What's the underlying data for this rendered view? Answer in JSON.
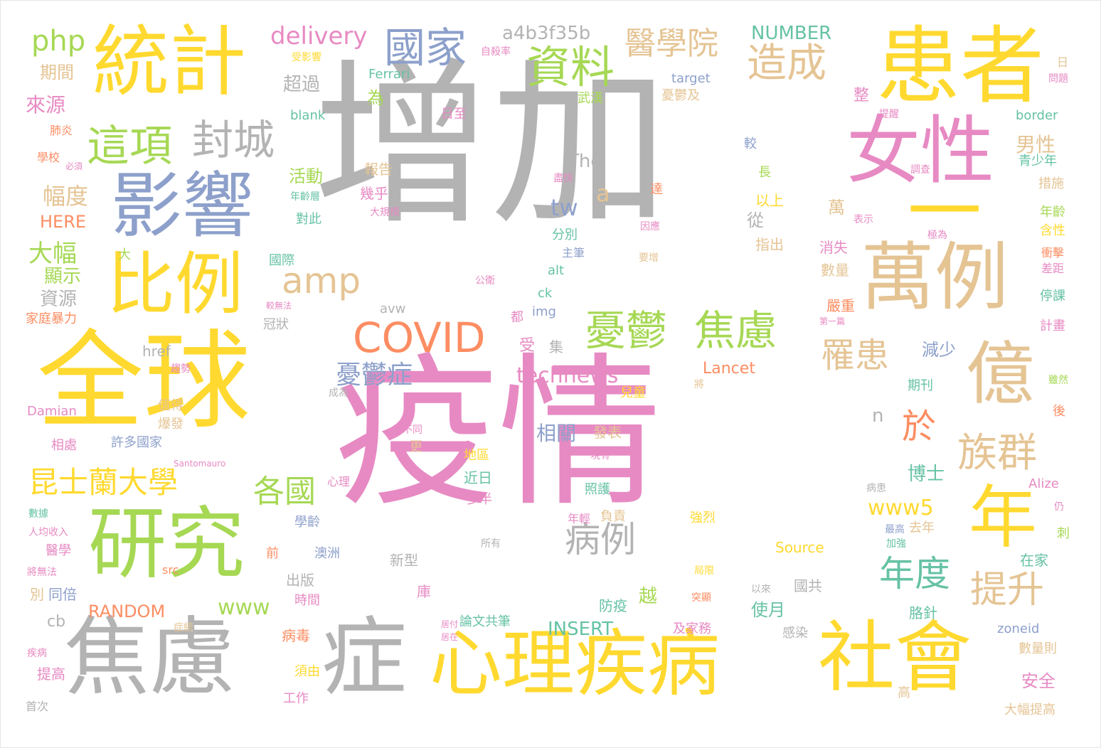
{
  "palette": {
    "gray": "#b3b3b3",
    "pink": "#e78ac3",
    "yellow": "#ffd92f",
    "green": "#a6d854",
    "blue": "#8da0cb",
    "tan": "#e5c494",
    "orange": "#fc8d62",
    "teal": "#66c2a5"
  },
  "words": [
    {
      "text": "增加",
      "color": "gray"
    },
    {
      "text": "疫情",
      "color": "pink"
    },
    {
      "text": "全球",
      "color": "yellow"
    },
    {
      "text": "患者",
      "color": "yellow"
    },
    {
      "text": "統計",
      "color": "yellow"
    },
    {
      "text": "影響",
      "color": "blue"
    },
    {
      "text": "比例",
      "color": "yellow"
    },
    {
      "text": "研究",
      "color": "green"
    },
    {
      "text": "焦慮",
      "color": "gray"
    },
    {
      "text": "症",
      "color": "gray"
    },
    {
      "text": "心理疾病",
      "color": "yellow"
    },
    {
      "text": "社會",
      "color": "yellow"
    },
    {
      "text": "女性",
      "color": "pink"
    },
    {
      "text": "一",
      "color": "yellow"
    },
    {
      "text": "萬例",
      "color": "tan"
    },
    {
      "text": "億",
      "color": "tan"
    },
    {
      "text": "年",
      "color": "yellow"
    },
    {
      "text": "這項",
      "color": "green"
    },
    {
      "text": "封城",
      "color": "gray"
    },
    {
      "text": "資料",
      "color": "green"
    },
    {
      "text": "國家",
      "color": "blue"
    },
    {
      "text": "醫學院",
      "color": "tan"
    },
    {
      "text": "造成",
      "color": "tan"
    },
    {
      "text": "delivery",
      "color": "pink"
    },
    {
      "text": "a4b3f35b",
      "color": "gray"
    },
    {
      "text": "NUMBER",
      "color": "teal"
    },
    {
      "text": "php",
      "color": "green"
    },
    {
      "text": "COVID",
      "color": "orange"
    },
    {
      "text": "amp",
      "color": "tan"
    },
    {
      "text": "憂鬱",
      "color": "green"
    },
    {
      "text": "焦慮",
      "color": "green"
    },
    {
      "text": "罹患",
      "color": "tan"
    },
    {
      "text": "族群",
      "color": "tan"
    },
    {
      "text": "昆士蘭大學",
      "color": "yellow"
    },
    {
      "text": "各國",
      "color": "green"
    },
    {
      "text": "病例",
      "color": "gray"
    },
    {
      "text": "年度",
      "color": "teal"
    },
    {
      "text": "提升",
      "color": "tan"
    },
    {
      "text": "於",
      "color": "orange"
    },
    {
      "text": "www5",
      "color": "yellow"
    },
    {
      "text": "technews",
      "color": "pink"
    },
    {
      "text": "憂鬱症",
      "color": "blue"
    },
    {
      "text": "大幅",
      "color": "green"
    },
    {
      "text": "幅度",
      "color": "tan"
    },
    {
      "text": "tw",
      "color": "blue"
    },
    {
      "text": "a",
      "color": "tan"
    },
    {
      "text": "The",
      "color": "gray"
    },
    {
      "text": "男性",
      "color": "tan"
    },
    {
      "text": "www",
      "color": "green"
    },
    {
      "text": "RANDOM",
      "color": "orange"
    },
    {
      "text": "INSERT",
      "color": "teal"
    },
    {
      "text": "Lancet",
      "color": "orange"
    },
    {
      "text": "n",
      "color": "gray"
    },
    {
      "text": "相關",
      "color": "blue"
    },
    {
      "text": "博士",
      "color": "teal"
    },
    {
      "text": "減少",
      "color": "blue"
    },
    {
      "text": "萬",
      "color": "tan"
    },
    {
      "text": "從",
      "color": "gray"
    },
    {
      "text": "超過",
      "color": "gray"
    },
    {
      "text": "為",
      "color": "green"
    },
    {
      "text": "來源",
      "color": "pink"
    },
    {
      "text": "期間",
      "color": "tan"
    },
    {
      "text": "顯示",
      "color": "green"
    },
    {
      "text": "資源",
      "color": "gray"
    },
    {
      "text": "HERE",
      "color": "orange"
    },
    {
      "text": "活動",
      "color": "green"
    },
    {
      "text": "報告",
      "color": "tan"
    },
    {
      "text": "Ferrari",
      "color": "teal"
    },
    {
      "text": "blank",
      "color": "teal"
    },
    {
      "text": "受影響",
      "color": "yellow"
    },
    {
      "text": "自殺率",
      "color": "pink"
    },
    {
      "text": "日至",
      "color": "pink"
    },
    {
      "text": "武漢",
      "color": "green"
    },
    {
      "text": "target",
      "color": "blue"
    },
    {
      "text": "憂鬱及",
      "color": "tan"
    },
    {
      "text": "整",
      "color": "pink"
    },
    {
      "text": "border",
      "color": "teal"
    },
    {
      "text": "日",
      "color": "tan"
    },
    {
      "text": "問題",
      "color": "pink"
    },
    {
      "text": "青少年",
      "color": "teal"
    },
    {
      "text": "措施",
      "color": "tan"
    },
    {
      "text": "年齡",
      "color": "green"
    },
    {
      "text": "含性",
      "color": "yellow"
    },
    {
      "text": "衝擊",
      "color": "orange"
    },
    {
      "text": "差距",
      "color": "pink"
    },
    {
      "text": "停課",
      "color": "teal"
    },
    {
      "text": "計畫",
      "color": "pink"
    },
    {
      "text": "雖然",
      "color": "green"
    },
    {
      "text": "後",
      "color": "orange"
    },
    {
      "text": "仍",
      "color": "pink"
    },
    {
      "text": "刺",
      "color": "green"
    },
    {
      "text": "在家",
      "color": "teal"
    },
    {
      "text": "大幅提高",
      "color": "tan"
    },
    {
      "text": "數量則",
      "color": "tan"
    },
    {
      "text": "zoneid",
      "color": "blue"
    },
    {
      "text": "高",
      "color": "tan"
    },
    {
      "text": "安全",
      "color": "pink"
    },
    {
      "text": "Alize",
      "color": "pink"
    },
    {
      "text": "最高",
      "color": "blue"
    },
    {
      "text": "去年",
      "color": "tan"
    },
    {
      "text": "加強",
      "color": "teal"
    },
    {
      "text": "病患",
      "color": "gray"
    },
    {
      "text": "期刊",
      "color": "teal"
    },
    {
      "text": "嚴重",
      "color": "orange"
    },
    {
      "text": "第一篇",
      "color": "pink"
    },
    {
      "text": "數量",
      "color": "tan"
    },
    {
      "text": "消失",
      "color": "pink"
    },
    {
      "text": "指出",
      "color": "tan"
    },
    {
      "text": "以上",
      "color": "yellow"
    },
    {
      "text": "長",
      "color": "green"
    },
    {
      "text": "較",
      "color": "blue"
    },
    {
      "text": "調查",
      "color": "pink"
    },
    {
      "text": "提醒",
      "color": "pink"
    },
    {
      "text": "表示",
      "color": "pink"
    },
    {
      "text": "極為",
      "color": "pink"
    },
    {
      "text": "因應",
      "color": "pink"
    },
    {
      "text": "達",
      "color": "orange"
    },
    {
      "text": "要增",
      "color": "tan"
    },
    {
      "text": "Source",
      "color": "yellow"
    },
    {
      "text": "國共",
      "color": "gray"
    },
    {
      "text": "以來",
      "color": "gray"
    },
    {
      "text": "胳針",
      "color": "teal"
    },
    {
      "text": "使月",
      "color": "teal"
    },
    {
      "text": "感染",
      "color": "gray"
    },
    {
      "text": "及家務",
      "color": "pink"
    },
    {
      "text": "將",
      "color": "tan"
    },
    {
      "text": "強烈",
      "color": "yellow"
    },
    {
      "text": "局限",
      "color": "yellow"
    },
    {
      "text": "突顯",
      "color": "orange"
    },
    {
      "text": "越",
      "color": "green"
    },
    {
      "text": "防疫",
      "color": "teal"
    },
    {
      "text": "照護",
      "color": "teal"
    },
    {
      "text": "年輕",
      "color": "pink"
    },
    {
      "text": "負責",
      "color": "tan"
    },
    {
      "text": "現有",
      "color": "pink"
    },
    {
      "text": "發表",
      "color": "tan"
    },
    {
      "text": "兒童",
      "color": "yellow"
    },
    {
      "text": "所有",
      "color": "gray"
    },
    {
      "text": "新型",
      "color": "gray"
    },
    {
      "text": "庫",
      "color": "pink"
    },
    {
      "text": "多半",
      "color": "pink"
    },
    {
      "text": "近日",
      "color": "teal"
    },
    {
      "text": "地區",
      "color": "yellow"
    },
    {
      "text": "不同",
      "color": "pink"
    },
    {
      "text": "更",
      "color": "tan"
    },
    {
      "text": "論文共筆",
      "color": "teal"
    },
    {
      "text": "居付",
      "color": "pink"
    },
    {
      "text": "居在",
      "color": "pink"
    },
    {
      "text": "受",
      "color": "pink"
    },
    {
      "text": "集",
      "color": "gray"
    },
    {
      "text": "都",
      "color": "pink"
    },
    {
      "text": "img",
      "color": "blue"
    },
    {
      "text": "ck",
      "color": "teal"
    },
    {
      "text": "alt",
      "color": "teal"
    },
    {
      "text": "主筆",
      "color": "blue"
    },
    {
      "text": "分別",
      "color": "teal"
    },
    {
      "text": "公衛",
      "color": "pink"
    },
    {
      "text": "盡快",
      "color": "pink"
    },
    {
      "text": "avw",
      "color": "gray"
    },
    {
      "text": "href",
      "color": "gray"
    },
    {
      "text": "趨勢",
      "color": "pink"
    },
    {
      "text": "成為",
      "color": "gray"
    },
    {
      "text": "Damian",
      "color": "pink"
    },
    {
      "text": "值得",
      "color": "tan"
    },
    {
      "text": "爆發",
      "color": "tan"
    },
    {
      "text": "許多國家",
      "color": "blue"
    },
    {
      "text": "相處",
      "color": "pink"
    },
    {
      "text": "Santomauro",
      "color": "pink"
    },
    {
      "text": "心理",
      "color": "pink"
    },
    {
      "text": "數據",
      "color": "teal"
    },
    {
      "text": "人均收入",
      "color": "pink"
    },
    {
      "text": "醫學",
      "color": "pink"
    },
    {
      "text": "將無法",
      "color": "pink"
    },
    {
      "text": "別",
      "color": "tan"
    },
    {
      "text": "同倍",
      "color": "blue"
    },
    {
      "text": "src",
      "color": "orange"
    },
    {
      "text": "cb",
      "color": "gray"
    },
    {
      "text": "症統",
      "color": "tan"
    },
    {
      "text": "疾病",
      "color": "pink"
    },
    {
      "text": "提高",
      "color": "pink"
    },
    {
      "text": "首次",
      "color": "gray"
    },
    {
      "text": "病毒",
      "color": "orange"
    },
    {
      "text": "須由",
      "color": "yellow"
    },
    {
      "text": "工作",
      "color": "pink"
    },
    {
      "text": "出版",
      "color": "gray"
    },
    {
      "text": "時間",
      "color": "pink"
    },
    {
      "text": "前",
      "color": "orange"
    },
    {
      "text": "學齡",
      "color": "blue"
    },
    {
      "text": "澳洲",
      "color": "blue"
    },
    {
      "text": "國際",
      "color": "teal"
    },
    {
      "text": "冠狀",
      "color": "gray"
    },
    {
      "text": "較無法",
      "color": "pink"
    },
    {
      "text": "家庭暴力",
      "color": "orange"
    },
    {
      "text": "大",
      "color": "green"
    },
    {
      "text": "對此",
      "color": "teal"
    },
    {
      "text": "年齡層",
      "color": "teal"
    },
    {
      "text": "大規模",
      "color": "pink"
    },
    {
      "text": "幾乎",
      "color": "pink"
    },
    {
      "text": "學校",
      "color": "orange"
    },
    {
      "text": "必須",
      "color": "pink"
    },
    {
      "text": "肺炎",
      "color": "orange"
    }
  ]
}
